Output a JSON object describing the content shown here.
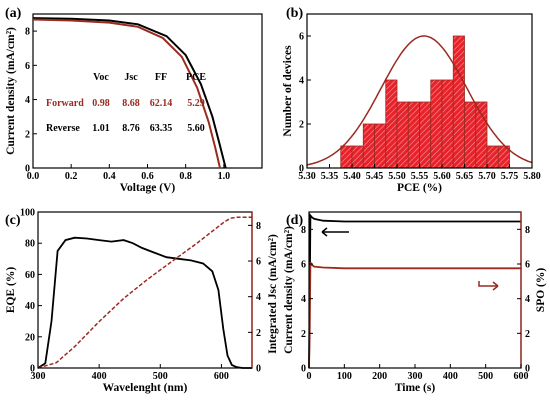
{
  "chart_data": [
    {
      "panel": "(a)",
      "type": "line",
      "xlabel": "Voltage (V)",
      "ylabel": "Current density (mA/cm²)",
      "xlim": [
        0.0,
        1.2
      ],
      "ylim": [
        0,
        9
      ],
      "xticks": [
        "0.0",
        "0.2",
        "0.4",
        "0.6",
        "0.8",
        "1.0"
      ],
      "yticks": [
        "0",
        "2",
        "4",
        "6",
        "8"
      ],
      "series": [
        {
          "name": "Reverse",
          "color": "#000000",
          "voc": 1.01,
          "jsc": 8.76,
          "ff": 63.35,
          "x": [
            0.0,
            0.2,
            0.4,
            0.55,
            0.7,
            0.8,
            0.88,
            0.94,
            0.98,
            1.01
          ],
          "y": [
            8.76,
            8.72,
            8.62,
            8.4,
            7.7,
            6.6,
            4.9,
            3.0,
            1.3,
            0.0
          ]
        },
        {
          "name": "Forward",
          "color": "#9b2a1f",
          "voc": 0.98,
          "jsc": 8.68,
          "ff": 62.14,
          "x": [
            0.0,
            0.2,
            0.4,
            0.55,
            0.68,
            0.78,
            0.86,
            0.92,
            0.955,
            0.98
          ],
          "y": [
            8.68,
            8.62,
            8.5,
            8.25,
            7.6,
            6.5,
            4.7,
            2.7,
            1.2,
            0.0
          ]
        }
      ],
      "table": {
        "headers": [
          "Voc",
          "Jsc",
          "FF",
          "PCE"
        ],
        "rows": [
          {
            "label": "Forward",
            "values": [
              "0.98",
              "8.68",
              "62.14",
              "5.29"
            ],
            "color": "#9b2a1f"
          },
          {
            "label": "Reverse",
            "values": [
              "1.01",
              "8.76",
              "63.35",
              "5.60"
            ],
            "color": "#000000"
          }
        ]
      }
    },
    {
      "panel": "(b)",
      "type": "bar",
      "xlabel": "PCE (%)",
      "ylabel": "Number of devices",
      "xlim": [
        5.3,
        5.8
      ],
      "ylim": [
        0,
        7
      ],
      "xticks": [
        "5.30",
        "5.35",
        "5.40",
        "5.45",
        "5.50",
        "5.55",
        "5.60",
        "5.65",
        "5.70",
        "5.75",
        "5.80"
      ],
      "yticks": [
        "0",
        "2",
        "4",
        "6"
      ],
      "bin_width": 0.025,
      "bins": [
        5.35,
        5.375,
        5.4,
        5.425,
        5.45,
        5.475,
        5.5,
        5.525,
        5.55,
        5.575,
        5.6,
        5.625,
        5.65,
        5.675,
        5.7,
        5.725
      ],
      "counts": [
        0,
        1,
        1,
        2,
        2,
        4,
        3,
        3,
        3,
        4,
        4,
        6,
        3,
        3,
        1,
        1
      ],
      "bar_color": "#e8222a",
      "fit": {
        "type": "gaussian",
        "mean": 5.56,
        "peak": 6.0,
        "sigma": 0.095,
        "color": "#9b2a1f"
      }
    },
    {
      "panel": "(c)",
      "type": "line",
      "xlabel": "Wavelenght (nm)",
      "ylabel": "EQE (%)",
      "y2label": "Integrated Jsc (mA/cm²)",
      "xlim": [
        300,
        650
      ],
      "ylim": [
        0,
        100
      ],
      "y2lim": [
        0,
        8.75
      ],
      "xticks": [
        "300",
        "400",
        "500",
        "600"
      ],
      "yticks": [
        "0",
        "20",
        "40",
        "60",
        "80",
        "100"
      ],
      "y2ticks": [
        "0",
        "2",
        "4",
        "6",
        "8"
      ],
      "series": [
        {
          "name": "EQE",
          "color": "#000000",
          "axis": "left",
          "x": [
            300,
            312,
            322,
            332,
            345,
            360,
            380,
            400,
            420,
            440,
            455,
            470,
            490,
            510,
            530,
            550,
            570,
            585,
            595,
            603,
            610,
            617,
            625,
            635,
            650
          ],
          "y": [
            0,
            3,
            30,
            75,
            82,
            83.5,
            83,
            82,
            81,
            82,
            80,
            77,
            74,
            71,
            70,
            69,
            67,
            62,
            50,
            25,
            8,
            2,
            0.5,
            0,
            0
          ]
        },
        {
          "name": "Integrated Jsc",
          "color": "#9b2a1f",
          "axis": "right",
          "dashed": true,
          "x": [
            300,
            330,
            360,
            400,
            440,
            480,
            520,
            560,
            590,
            605,
            615,
            625,
            640,
            650
          ],
          "y": [
            0,
            0.3,
            1.2,
            2.6,
            3.9,
            5.0,
            6.0,
            7.0,
            7.8,
            8.2,
            8.4,
            8.45,
            8.45,
            8.45
          ]
        }
      ]
    },
    {
      "panel": "(d)",
      "type": "line",
      "xlabel": "Time (s)",
      "ylabel": "Current density (mA/cm²)",
      "y2label": "SPO (%)",
      "xlim": [
        0,
        600
      ],
      "ylim": [
        0,
        9
      ],
      "y2lim": [
        0,
        9
      ],
      "xticks": [
        "0",
        "100",
        "200",
        "300",
        "400",
        "500",
        "600"
      ],
      "yticks": [
        "0",
        "2",
        "4",
        "6",
        "8"
      ],
      "y2ticks": [
        "0",
        "2",
        "4",
        "6",
        "8"
      ],
      "series": [
        {
          "name": "Current density",
          "color": "#000000",
          "axis": "left",
          "x": [
            0,
            2,
            4,
            8,
            15,
            40,
            100,
            200,
            300,
            400,
            500,
            600
          ],
          "y": [
            0,
            4,
            8.8,
            8.7,
            8.6,
            8.5,
            8.45,
            8.45,
            8.45,
            8.45,
            8.45,
            8.45
          ]
        },
        {
          "name": "SPO",
          "color": "#9b2a1f",
          "axis": "right",
          "x": [
            0,
            2,
            4,
            8,
            15,
            40,
            100,
            200,
            300,
            400,
            500,
            600
          ],
          "y": [
            0,
            2,
            6.1,
            5.95,
            5.85,
            5.8,
            5.75,
            5.75,
            5.75,
            5.75,
            5.75,
            5.75
          ]
        }
      ]
    }
  ]
}
